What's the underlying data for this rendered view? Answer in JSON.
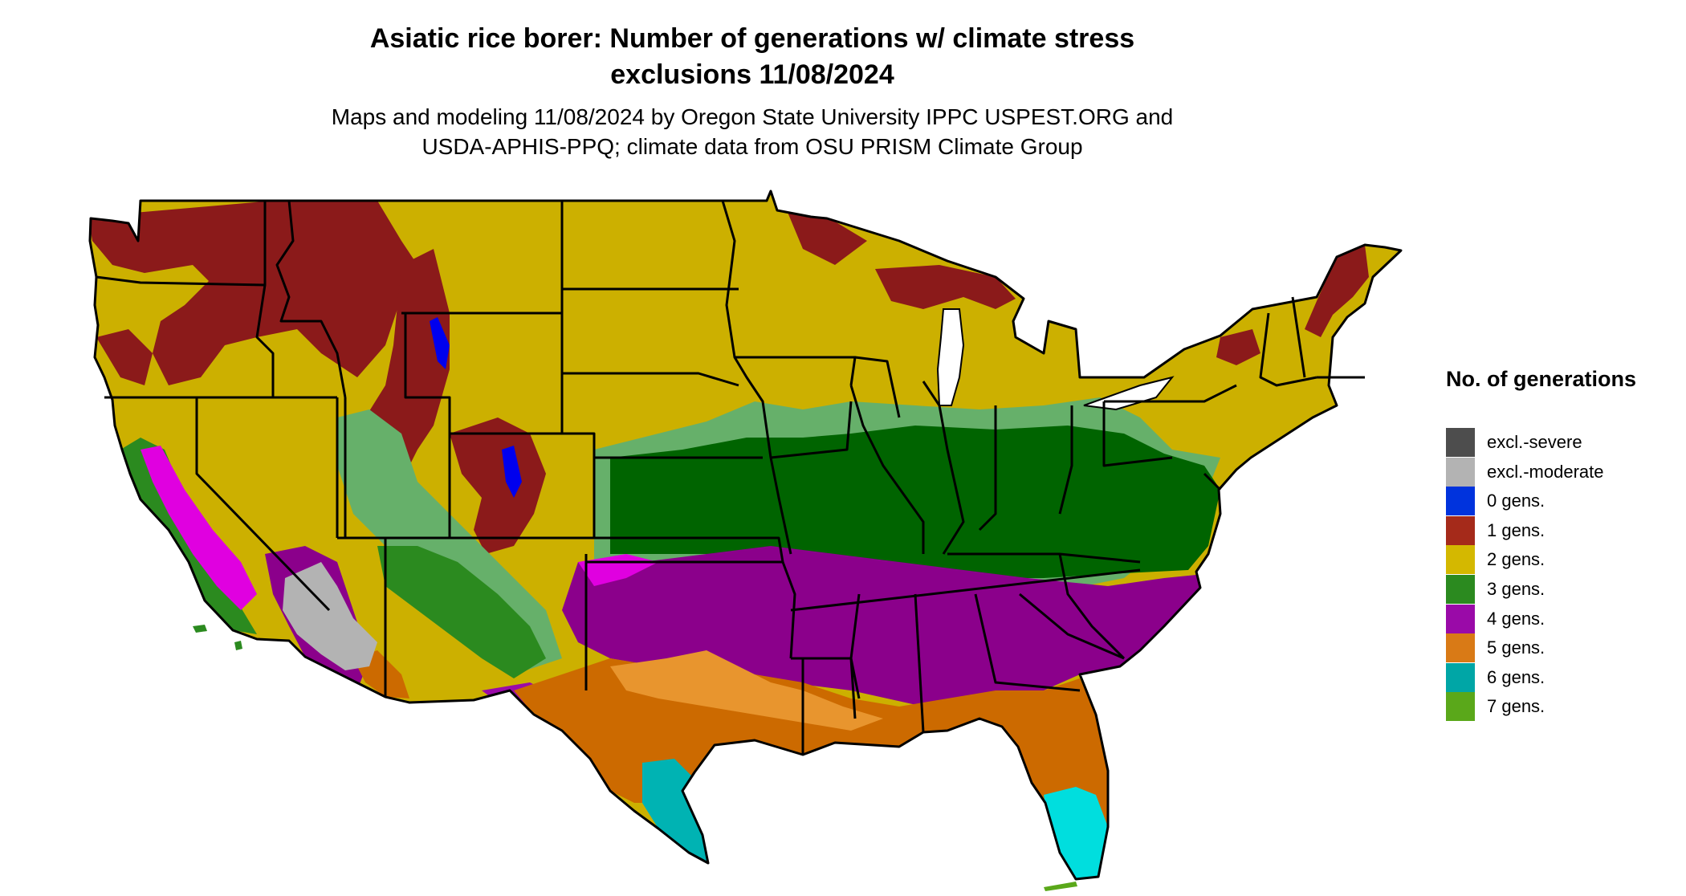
{
  "map": {
    "title_line1": "Asiatic rice borer: Number of generations w/ climate stress",
    "title_line2": "exclusions 11/08/2024",
    "subtitle_line1": "Maps and modeling 11/08/2024 by Oregon State University IPPC USPEST.ORG and",
    "subtitle_line2": "USDA-APHIS-PPQ; climate data from OSU PRISM Climate Group"
  },
  "legend": {
    "title": "No. of generations",
    "items": [
      {
        "label": "excl.-severe",
        "color": "#4d4d4d"
      },
      {
        "label": "excl.-moderate",
        "color": "#b3b3b3"
      },
      {
        "label": "0 gens.",
        "color": "#0033dd"
      },
      {
        "label": "1 gens.",
        "color": "#a52a1a"
      },
      {
        "label": "2 gens.",
        "color": "#d4b800"
      },
      {
        "label": "3 gens.",
        "color": "#2b8a1f"
      },
      {
        "label": "4 gens.",
        "color": "#9a0aa8"
      },
      {
        "label": "5 gens.",
        "color": "#d97a16"
      },
      {
        "label": "6 gens.",
        "color": "#00a6a6"
      },
      {
        "label": "7 gens.",
        "color": "#5aa81a"
      }
    ]
  },
  "colors": {
    "gen1": "#8b1a1a",
    "gen2": "#ccb000",
    "gen2_light": "#e2d21a",
    "gen3": "#006400",
    "gen3_light": "#66b06a",
    "gen3_pale": "#9edb9e",
    "gen4": "#8b008b",
    "gen4_bright": "#e000e0",
    "gen5": "#cc6a00",
    "gen5_light": "#e8952e",
    "gen6": "#00b3b3",
    "gen6_bright": "#00dede",
    "excl_moderate": "#b3b3b3",
    "gen0": "#0000ee",
    "border": "#000000"
  }
}
